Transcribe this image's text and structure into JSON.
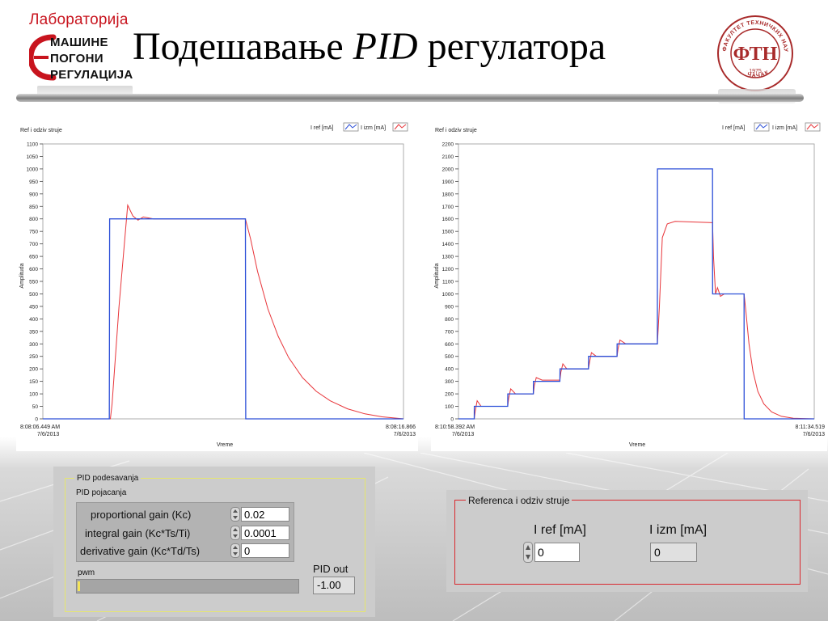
{
  "header": {
    "logo_left": {
      "line1": "Лабораторија",
      "line2": "МАШИНЕ",
      "line3": "ПОГОНИ",
      "line4": "РЕГУЛАЦИЈА"
    },
    "title_normal_1": "Подешавање ",
    "title_italic": "PID",
    "title_normal_2": " регулатора",
    "logo_right": {
      "arc_text": "ФАКУЛТЕТ ТЕХНИЧКИХ НАУКА",
      "bottom_text": "ЧАЧАК",
      "year": "1975",
      "monogram": "ФТН"
    }
  },
  "colors": {
    "ref": "#2c4fd8",
    "izm": "#e8353a",
    "accent_red": "#c8141e",
    "panel_gray": "#cccccc"
  },
  "chart_data": [
    {
      "type": "line",
      "title": "Ref i odziv struje",
      "xlabel": "Vreme",
      "ylabel": "Amplituda",
      "ylim": [
        0,
        1100
      ],
      "yticks": [
        0,
        50,
        100,
        150,
        200,
        250,
        300,
        350,
        400,
        450,
        500,
        550,
        600,
        650,
        700,
        750,
        800,
        850,
        900,
        950,
        1000,
        1050,
        1100
      ],
      "xlim": [
        0,
        10.417
      ],
      "x_start_label": [
        "8:08:06.449 AM",
        "7/6/2013"
      ],
      "x_end_label": [
        "8:08:16.866",
        "7/6/2013"
      ],
      "legend_position": "top-right",
      "series": [
        {
          "name": "I ref [mA]",
          "x": [
            0,
            1.92,
            1.93,
            5.85,
            5.86,
            10.417
          ],
          "y": [
            0,
            0,
            800,
            800,
            0,
            0
          ]
        },
        {
          "name": "I izm [mA]",
          "x": [
            0,
            1.95,
            2.0,
            2.2,
            2.45,
            2.6,
            2.75,
            2.9,
            3.2,
            3.6,
            4.2,
            5.0,
            5.85,
            6.0,
            6.2,
            6.5,
            6.8,
            7.1,
            7.5,
            7.9,
            8.3,
            8.8,
            9.3,
            9.8,
            10.417
          ],
          "y": [
            0,
            0,
            60,
            450,
            855,
            812,
            795,
            808,
            800,
            800,
            800,
            800,
            800,
            720,
            590,
            440,
            330,
            245,
            165,
            110,
            72,
            40,
            20,
            8,
            0
          ]
        }
      ]
    },
    {
      "type": "line",
      "title": "Ref i odziv struje",
      "xlabel": "Vreme",
      "ylabel": "Amplituda",
      "ylim": [
        0,
        2200
      ],
      "yticks": [
        0,
        100,
        200,
        300,
        400,
        500,
        600,
        700,
        800,
        900,
        1000,
        1100,
        1200,
        1300,
        1400,
        1500,
        1600,
        1700,
        1800,
        1900,
        2000,
        2100,
        2200
      ],
      "xlim": [
        0,
        36.127
      ],
      "x_start_label": [
        "8:10:58.392 AM",
        "7/6/2013"
      ],
      "x_end_label": [
        "8:11:34.519",
        "7/6/2013"
      ],
      "legend_position": "top-right",
      "series": [
        {
          "name": "I ref [mA]",
          "x": [
            0,
            1.6,
            1.61,
            5.0,
            5.01,
            7.6,
            7.61,
            10.3,
            10.31,
            13.2,
            13.21,
            16.1,
            16.11,
            20.2,
            20.21,
            25.8,
            25.81,
            28.5,
            28.51,
            29.0,
            29.01,
            36.127
          ],
          "y": [
            0,
            0,
            100,
            100,
            200,
            200,
            300,
            300,
            400,
            400,
            500,
            500,
            600,
            600,
            2000,
            2000,
            1000,
            1000,
            1000,
            1000,
            0,
            0
          ]
        },
        {
          "name": "I izm [mA]",
          "x": [
            0,
            1.6,
            1.7,
            1.9,
            2.3,
            5.0,
            5.1,
            5.3,
            5.8,
            7.6,
            7.7,
            7.9,
            8.5,
            10.3,
            10.4,
            10.6,
            11.0,
            13.2,
            13.3,
            13.5,
            14.0,
            16.1,
            16.2,
            16.4,
            17.0,
            20.2,
            20.4,
            20.7,
            21.2,
            22.0,
            25.8,
            25.9,
            26.1,
            26.3,
            26.6,
            27.0,
            28.5,
            29.0,
            29.2,
            29.5,
            29.9,
            30.4,
            31.0,
            31.8,
            32.8,
            34.0,
            36.127
          ],
          "y": [
            0,
            0,
            60,
            145,
            100,
            100,
            165,
            240,
            200,
            200,
            265,
            330,
            310,
            310,
            375,
            440,
            400,
            400,
            450,
            530,
            500,
            500,
            560,
            630,
            600,
            600,
            900,
            1450,
            1560,
            1580,
            1570,
            1300,
            1000,
            1050,
            980,
            1000,
            1000,
            1000,
            850,
            600,
            380,
            220,
            120,
            55,
            20,
            5,
            0
          ]
        }
      ]
    }
  ],
  "pid_panel": {
    "group_title": "PID podesavanja",
    "subtitle": "PID pojacanja",
    "gains": [
      {
        "label": "proportional gain (Kc)",
        "value": "0.02"
      },
      {
        "label": "integral gain (Kc*Ts/Ti)",
        "value": "0.0001"
      },
      {
        "label": "derivative gain (Kc*Td/Ts)",
        "value": "0"
      }
    ],
    "pwm_label": "pwm",
    "pwm_level": 0.01,
    "pid_out_label": "PID out",
    "pid_out_value": "-1.00"
  },
  "ref_panel": {
    "group_title": "Referenca i odziv struje",
    "i_ref_label": "I ref [mA]",
    "i_ref_value": "0",
    "i_izm_label": "I izm [mA]",
    "i_izm_value": "0"
  }
}
